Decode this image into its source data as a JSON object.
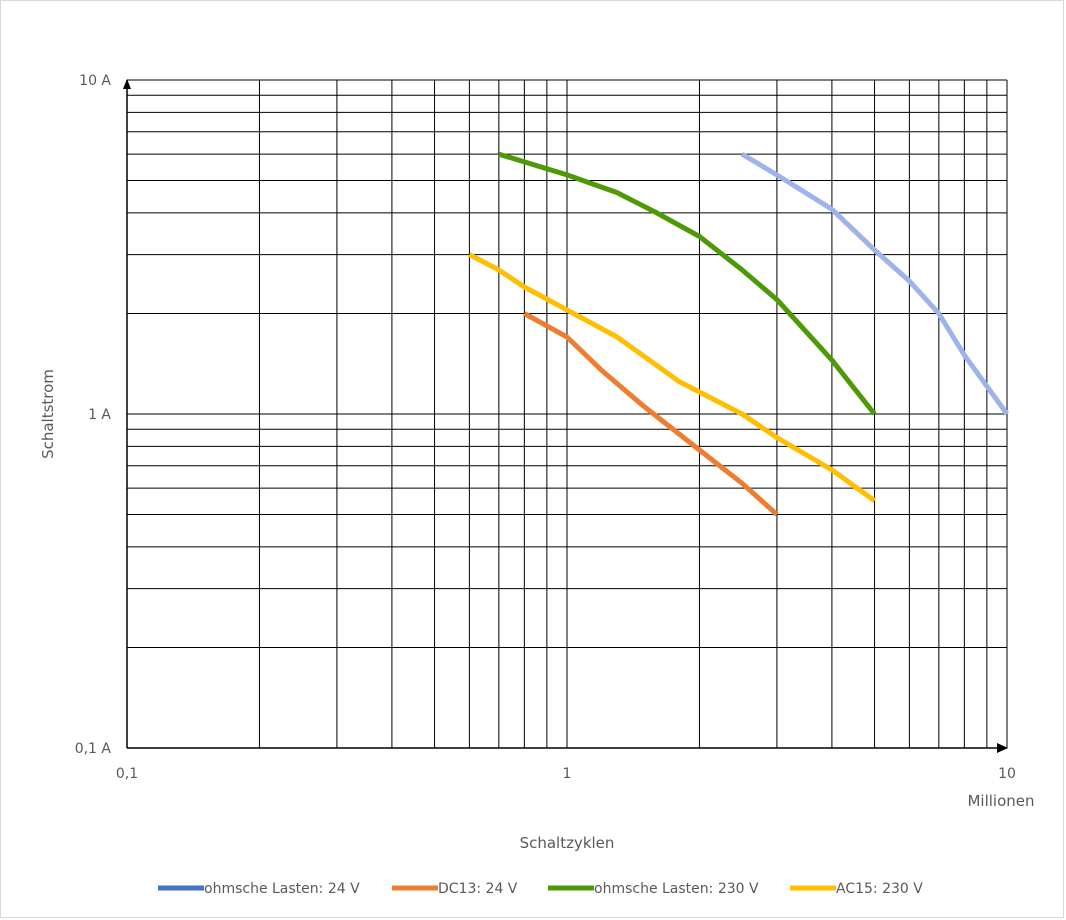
{
  "chart_data": {
    "type": "line",
    "x_scale": "log",
    "y_scale": "log",
    "xlim": [
      0.1,
      10
    ],
    "ylim": [
      0.1,
      10
    ],
    "grid": true,
    "legend_position": "bottom",
    "title": "",
    "xlabel": "Schaltzyklen",
    "x_unit_label": "Millionen",
    "ylabel": "Schaltstrom",
    "x_tick_labels": [
      {
        "value": 0.1,
        "label": "0,1"
      },
      {
        "value": 1,
        "label": "1"
      },
      {
        "value": 10,
        "label": "10"
      }
    ],
    "y_tick_labels": [
      {
        "value": 0.1,
        "label": "0,1 A"
      },
      {
        "value": 1,
        "label": "1 A"
      },
      {
        "value": 10,
        "label": "10 A"
      }
    ],
    "series": [
      {
        "name": "ohmsche Lasten: 24 V",
        "color": "#4472c4",
        "line_color": "#9db3ea",
        "x": [
          2.5,
          3.0,
          4.0,
          5.0,
          6.0,
          7.0,
          8.0,
          10.0
        ],
        "y": [
          6.0,
          5.2,
          4.1,
          3.1,
          2.5,
          2.0,
          1.5,
          1.0
        ]
      },
      {
        "name": "DC13: 24 V",
        "color": "#ed7d31",
        "x": [
          0.8,
          1.0,
          1.2,
          1.5,
          2.0,
          2.5,
          3.0
        ],
        "y": [
          2.0,
          1.7,
          1.35,
          1.05,
          0.78,
          0.62,
          0.5
        ]
      },
      {
        "name": "ohmsche Lasten: 230 V",
        "color": "#4e9a06",
        "x": [
          0.7,
          1.0,
          1.3,
          1.6,
          2.0,
          2.5,
          3.0,
          4.0,
          5.0
        ],
        "y": [
          6.0,
          5.2,
          4.6,
          4.0,
          3.4,
          2.7,
          2.2,
          1.45,
          1.0
        ]
      },
      {
        "name": "AC15: 230 V",
        "color": "#ffbf00",
        "x": [
          0.6,
          0.7,
          0.8,
          1.0,
          1.3,
          1.8,
          2.5,
          3.0,
          4.0,
          5.0
        ],
        "y": [
          3.0,
          2.7,
          2.4,
          2.05,
          1.7,
          1.25,
          1.0,
          0.85,
          0.68,
          0.55
        ]
      }
    ]
  }
}
